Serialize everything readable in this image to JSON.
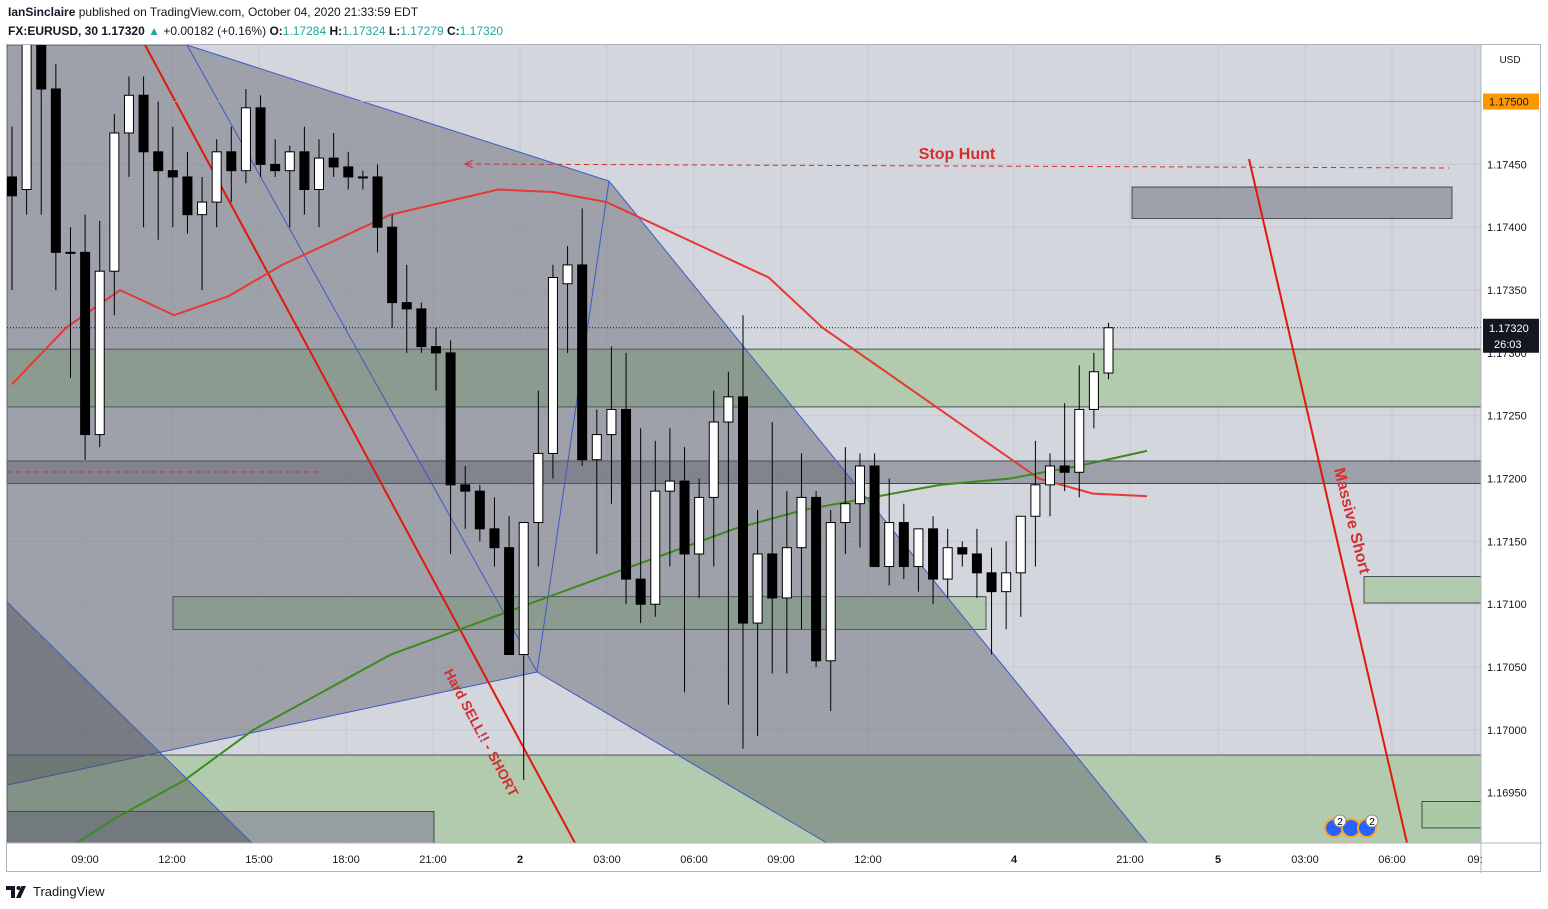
{
  "header": {
    "author": "IanSinclaire",
    "published": "published on TradingView.com, October 04, 2020 21:33:59 EDT",
    "symbol": "FX:EURUSD, 30",
    "last": "1.17320",
    "change": "+0.00182 (+0.16%)",
    "o_label": "O:",
    "o": "1.17284",
    "h_label": "H:",
    "h": "1.17324",
    "l_label": "L:",
    "l": "1.17279",
    "c_label": "C:",
    "c": "1.17320"
  },
  "footer": {
    "brand": "TradingView"
  },
  "colors": {
    "background": "#d4d6dd",
    "candle_up": "#ffffff",
    "candle_down": "#000000",
    "ma_red": "#e53935",
    "ma_green": "#3d8a1e",
    "zone_green": "#a9c8a3",
    "zone_gray": "#8c8f99",
    "price_line": "#ff9800",
    "annotation": "#d32f2f"
  },
  "chart_data": {
    "type": "candlestick",
    "symbol": "FX:EURUSD",
    "interval": "30",
    "currency": "USD",
    "ylim": [
      1.1691,
      1.17545
    ],
    "y_ticks": [
      "1.16950",
      "1.17000",
      "1.17050",
      "1.17100",
      "1.17150",
      "1.17200",
      "1.17250",
      "1.17300",
      "1.17350",
      "1.17400",
      "1.17450"
    ],
    "x_ticks": [
      "09:00",
      "12:00",
      "15:00",
      "18:00",
      "21:00",
      "2",
      "03:00",
      "06:00",
      "09:00",
      "12:00",
      "4",
      "21:00",
      "5",
      "03:00",
      "06:00",
      "09:"
    ],
    "last_price": "1.17320",
    "countdown": "26:03",
    "orange_line_label": "1.17500",
    "orange_line_price": 1.175,
    "candles": [
      {
        "o": 1.1744,
        "h": 1.1748,
        "l": 1.1735,
        "c": 1.17425
      },
      {
        "o": 1.1743,
        "h": 1.1758,
        "l": 1.1741,
        "c": 1.1756
      },
      {
        "o": 1.1756,
        "h": 1.176,
        "l": 1.1741,
        "c": 1.1751
      },
      {
        "o": 1.1751,
        "h": 1.1753,
        "l": 1.1735,
        "c": 1.1738
      },
      {
        "o": 1.1738,
        "h": 1.174,
        "l": 1.1728,
        "c": 1.1738
      },
      {
        "o": 1.1738,
        "h": 1.1741,
        "l": 1.17215,
        "c": 1.17235
      },
      {
        "o": 1.17235,
        "h": 1.17405,
        "l": 1.17225,
        "c": 1.17365
      },
      {
        "o": 1.17365,
        "h": 1.1749,
        "l": 1.1733,
        "c": 1.17475
      },
      {
        "o": 1.17475,
        "h": 1.1752,
        "l": 1.1744,
        "c": 1.17505
      },
      {
        "o": 1.17505,
        "h": 1.1752,
        "l": 1.174,
        "c": 1.1746
      },
      {
        "o": 1.1746,
        "h": 1.175,
        "l": 1.1739,
        "c": 1.17445
      },
      {
        "o": 1.17445,
        "h": 1.1748,
        "l": 1.174,
        "c": 1.1744
      },
      {
        "o": 1.1744,
        "h": 1.1746,
        "l": 1.17395,
        "c": 1.1741
      },
      {
        "o": 1.1741,
        "h": 1.1744,
        "l": 1.1735,
        "c": 1.1742
      },
      {
        "o": 1.1742,
        "h": 1.1747,
        "l": 1.174,
        "c": 1.1746
      },
      {
        "o": 1.1746,
        "h": 1.1748,
        "l": 1.1742,
        "c": 1.17445
      },
      {
        "o": 1.17445,
        "h": 1.1751,
        "l": 1.17435,
        "c": 1.17495
      },
      {
        "o": 1.17495,
        "h": 1.17505,
        "l": 1.1744,
        "c": 1.1745
      },
      {
        "o": 1.1745,
        "h": 1.1747,
        "l": 1.1744,
        "c": 1.17445
      },
      {
        "o": 1.17445,
        "h": 1.17465,
        "l": 1.174,
        "c": 1.1746
      },
      {
        "o": 1.1746,
        "h": 1.1748,
        "l": 1.1741,
        "c": 1.1743
      },
      {
        "o": 1.1743,
        "h": 1.1747,
        "l": 1.174,
        "c": 1.17455
      },
      {
        "o": 1.17455,
        "h": 1.17475,
        "l": 1.1744,
        "c": 1.17448
      },
      {
        "o": 1.17448,
        "h": 1.1746,
        "l": 1.1743,
        "c": 1.1744
      },
      {
        "o": 1.1744,
        "h": 1.17445,
        "l": 1.1743,
        "c": 1.1744
      },
      {
        "o": 1.1744,
        "h": 1.1745,
        "l": 1.1738,
        "c": 1.174
      },
      {
        "o": 1.174,
        "h": 1.1741,
        "l": 1.1732,
        "c": 1.1734
      },
      {
        "o": 1.1734,
        "h": 1.1737,
        "l": 1.173,
        "c": 1.17335
      },
      {
        "o": 1.17335,
        "h": 1.1734,
        "l": 1.173,
        "c": 1.17305
      },
      {
        "o": 1.17305,
        "h": 1.1732,
        "l": 1.1727,
        "c": 1.173
      },
      {
        "o": 1.173,
        "h": 1.1731,
        "l": 1.1714,
        "c": 1.17195
      },
      {
        "o": 1.17195,
        "h": 1.1721,
        "l": 1.1716,
        "c": 1.1719
      },
      {
        "o": 1.1719,
        "h": 1.17195,
        "l": 1.1715,
        "c": 1.1716
      },
      {
        "o": 1.1716,
        "h": 1.17185,
        "l": 1.1713,
        "c": 1.17145
      },
      {
        "o": 1.17145,
        "h": 1.1717,
        "l": 1.1706,
        "c": 1.1706
      },
      {
        "o": 1.1706,
        "h": 1.17165,
        "l": 1.1696,
        "c": 1.17165
      },
      {
        "o": 1.17165,
        "h": 1.1727,
        "l": 1.1713,
        "c": 1.1722
      },
      {
        "o": 1.1722,
        "h": 1.1737,
        "l": 1.172,
        "c": 1.1736
      },
      {
        "o": 1.17355,
        "h": 1.17385,
        "l": 1.173,
        "c": 1.1737
      },
      {
        "o": 1.1737,
        "h": 1.17415,
        "l": 1.1721,
        "c": 1.17215
      },
      {
        "o": 1.17215,
        "h": 1.17255,
        "l": 1.1714,
        "c": 1.17235
      },
      {
        "o": 1.17235,
        "h": 1.17305,
        "l": 1.1718,
        "c": 1.17255
      },
      {
        "o": 1.17255,
        "h": 1.173,
        "l": 1.171,
        "c": 1.1712
      },
      {
        "o": 1.1712,
        "h": 1.1724,
        "l": 1.17085,
        "c": 1.171
      },
      {
        "o": 1.171,
        "h": 1.1723,
        "l": 1.1709,
        "c": 1.1719
      },
      {
        "o": 1.1719,
        "h": 1.1724,
        "l": 1.1713,
        "c": 1.17198
      },
      {
        "o": 1.17198,
        "h": 1.17225,
        "l": 1.1703,
        "c": 1.1714
      },
      {
        "o": 1.1714,
        "h": 1.172,
        "l": 1.17105,
        "c": 1.17185
      },
      {
        "o": 1.17185,
        "h": 1.1727,
        "l": 1.1713,
        "c": 1.17245
      },
      {
        "o": 1.17245,
        "h": 1.17285,
        "l": 1.1702,
        "c": 1.17265
      },
      {
        "o": 1.17265,
        "h": 1.1733,
        "l": 1.16985,
        "c": 1.17085
      },
      {
        "o": 1.17085,
        "h": 1.17175,
        "l": 1.16995,
        "c": 1.1714
      },
      {
        "o": 1.1714,
        "h": 1.17245,
        "l": 1.17045,
        "c": 1.17105
      },
      {
        "o": 1.17105,
        "h": 1.1719,
        "l": 1.17045,
        "c": 1.17145
      },
      {
        "o": 1.17145,
        "h": 1.1722,
        "l": 1.1708,
        "c": 1.17185
      },
      {
        "o": 1.17185,
        "h": 1.1719,
        "l": 1.1705,
        "c": 1.17055
      },
      {
        "o": 1.17055,
        "h": 1.17175,
        "l": 1.17015,
        "c": 1.17165
      },
      {
        "o": 1.17165,
        "h": 1.17225,
        "l": 1.1714,
        "c": 1.1718
      },
      {
        "o": 1.1718,
        "h": 1.1722,
        "l": 1.17145,
        "c": 1.1721
      },
      {
        "o": 1.1721,
        "h": 1.1722,
        "l": 1.1713,
        "c": 1.1713
      },
      {
        "o": 1.1713,
        "h": 1.172,
        "l": 1.17115,
        "c": 1.17165
      },
      {
        "o": 1.17165,
        "h": 1.1718,
        "l": 1.1712,
        "c": 1.1713
      },
      {
        "o": 1.1713,
        "h": 1.1716,
        "l": 1.1711,
        "c": 1.1716
      },
      {
        "o": 1.1716,
        "h": 1.1717,
        "l": 1.171,
        "c": 1.1712
      },
      {
        "o": 1.1712,
        "h": 1.1716,
        "l": 1.17105,
        "c": 1.17145
      },
      {
        "o": 1.17145,
        "h": 1.1715,
        "l": 1.1713,
        "c": 1.1714
      },
      {
        "o": 1.1714,
        "h": 1.1716,
        "l": 1.17105,
        "c": 1.17125
      },
      {
        "o": 1.17125,
        "h": 1.17145,
        "l": 1.1706,
        "c": 1.1711
      },
      {
        "o": 1.1711,
        "h": 1.1715,
        "l": 1.1708,
        "c": 1.17125
      },
      {
        "o": 1.17125,
        "h": 1.17165,
        "l": 1.1709,
        "c": 1.1717
      },
      {
        "o": 1.1717,
        "h": 1.1723,
        "l": 1.1713,
        "c": 1.17195
      },
      {
        "o": 1.17195,
        "h": 1.1722,
        "l": 1.1717,
        "c": 1.1721
      },
      {
        "o": 1.1721,
        "h": 1.1726,
        "l": 1.1719,
        "c": 1.17205
      },
      {
        "o": 1.17205,
        "h": 1.1729,
        "l": 1.17185,
        "c": 1.17255
      },
      {
        "o": 1.17255,
        "h": 1.173,
        "l": 1.1724,
        "c": 1.17285
      },
      {
        "o": 1.17284,
        "h": 1.17324,
        "l": 1.17279,
        "c": 1.1732
      }
    ],
    "ma_red": [
      1.17275,
      1.1732,
      1.1735,
      1.1733,
      1.17345,
      1.1737,
      1.1739,
      1.1741,
      1.1742,
      1.1743,
      1.17428,
      1.1742,
      1.174,
      1.1738,
      1.1736,
      1.1732,
      1.1729,
      1.1726,
      1.1723,
      1.172,
      1.17188,
      1.17186
    ],
    "ma_green": [
      1.16895,
      1.1693,
      1.1696,
      1.17,
      1.1703,
      1.1706,
      1.1708,
      1.171,
      1.1712,
      1.1714,
      1.1716,
      1.17175,
      1.17185,
      1.17195,
      1.172,
      1.1721,
      1.17222
    ],
    "zones": [
      {
        "kind": "green",
        "from": 1.17257,
        "to": 1.17303,
        "label": ""
      },
      {
        "kind": "gray",
        "from": 1.17196,
        "to": 1.17214,
        "label": ""
      },
      {
        "kind": "green",
        "from": 1.1708,
        "to": 1.17106,
        "label": ""
      },
      {
        "kind": "green",
        "from": 1.1691,
        "to": 1.1698,
        "label": ""
      },
      {
        "kind": "gray",
        "from": 1.1691,
        "to": 1.16935,
        "label": ""
      },
      {
        "kind": "gray",
        "from": 1.17407,
        "to": 1.17432,
        "label": ""
      },
      {
        "kind": "green",
        "from": 1.17101,
        "to": 1.17122,
        "label": ""
      },
      {
        "kind": "green",
        "from": 1.16922,
        "to": 1.16943,
        "label": ""
      }
    ],
    "annotations": {
      "stop_hunt": "Stop Hunt",
      "hard_sell": "Hard SELL!! - SHORT",
      "massive_short": "Massive Short",
      "events_count": "2"
    }
  }
}
